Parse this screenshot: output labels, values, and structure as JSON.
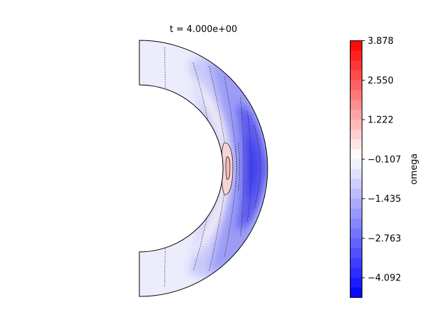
{
  "chart_data": {
    "type": "heatmap",
    "title": "t = 4.000e+00",
    "colorbar": {
      "label": "omega",
      "min": -4.756,
      "max": 3.878,
      "tick_values": [
        3.878,
        2.55,
        1.222,
        -0.107,
        -1.435,
        -2.763,
        -4.092
      ],
      "tick_labels": [
        "3.878",
        "2.550",
        "1.222",
        "−0.107",
        "−1.435",
        "−2.763",
        "−4.092"
      ],
      "levels": 26,
      "colormap": "bwr"
    },
    "domain": "spherical shell meridional half-plane",
    "colors": {
      "low": "#0000ff",
      "mid": "#ffffff",
      "high": "#ff0000"
    }
  }
}
